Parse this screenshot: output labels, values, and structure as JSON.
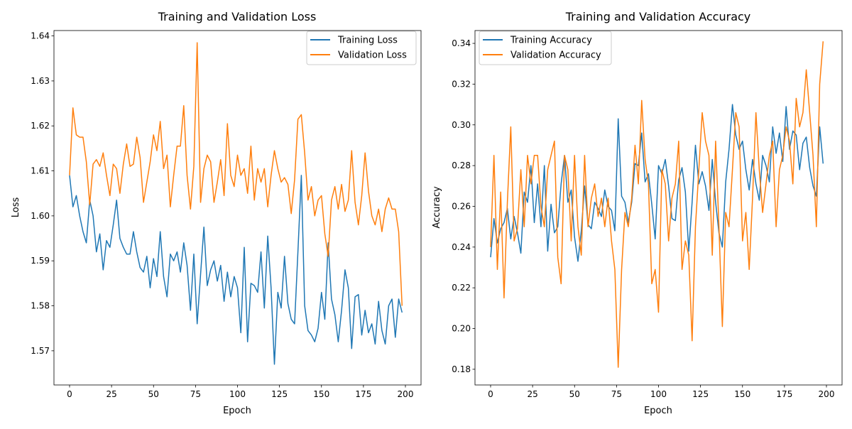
{
  "chart_data": [
    {
      "type": "line",
      "title": "Training and Validation Loss",
      "xlabel": "Epoch",
      "ylabel": "Loss",
      "xlim": [
        -9.3,
        209.3
      ],
      "ylim": [
        1.5624,
        1.6412
      ],
      "xticks": [
        0,
        25,
        50,
        75,
        100,
        125,
        150,
        175,
        200
      ],
      "xtick_labels": [
        "0",
        "25",
        "50",
        "75",
        "100",
        "125",
        "150",
        "175",
        "200"
      ],
      "yticks": [
        1.57,
        1.58,
        1.59,
        1.6,
        1.61,
        1.62,
        1.63,
        1.64
      ],
      "ytick_labels": [
        "1.57",
        "1.58",
        "1.59",
        "1.60",
        "1.61",
        "1.62",
        "1.63",
        "1.64"
      ],
      "grid": false,
      "legend_position": "top-right",
      "x": [
        0,
        2,
        4,
        6,
        8,
        10,
        12,
        14,
        16,
        18,
        20,
        22,
        24,
        26,
        28,
        30,
        32,
        34,
        36,
        38,
        40,
        42,
        44,
        46,
        48,
        50,
        52,
        54,
        56,
        58,
        60,
        62,
        64,
        66,
        68,
        70,
        72,
        74,
        76,
        78,
        80,
        82,
        84,
        86,
        88,
        90,
        92,
        94,
        96,
        98,
        100,
        102,
        104,
        106,
        108,
        110,
        112,
        114,
        116,
        118,
        120,
        122,
        124,
        126,
        128,
        130,
        132,
        134,
        136,
        138,
        140,
        142,
        144,
        146,
        148,
        150,
        152,
        154,
        156,
        158,
        160,
        162,
        164,
        166,
        168,
        170,
        172,
        174,
        176,
        178,
        180,
        182,
        184,
        186,
        188,
        190,
        192,
        194,
        196,
        198
      ],
      "series": [
        {
          "name": "Training Loss",
          "color": "#1f77b4",
          "values": [
            1.609,
            1.602,
            1.6045,
            1.6,
            1.5965,
            1.594,
            1.6035,
            1.6,
            1.592,
            1.596,
            1.588,
            1.5945,
            1.593,
            1.598,
            1.6035,
            1.595,
            1.593,
            1.5915,
            1.5915,
            1.5965,
            1.592,
            1.5885,
            1.5875,
            1.591,
            1.584,
            1.5905,
            1.5865,
            1.5965,
            1.5865,
            1.582,
            1.5915,
            1.59,
            1.592,
            1.5875,
            1.594,
            1.589,
            1.579,
            1.5915,
            1.576,
            1.587,
            1.5975,
            1.5845,
            1.588,
            1.59,
            1.5855,
            1.589,
            1.581,
            1.5875,
            1.582,
            1.5865,
            1.584,
            1.574,
            1.593,
            1.572,
            1.585,
            1.5845,
            1.583,
            1.592,
            1.5795,
            1.5955,
            1.584,
            1.567,
            1.583,
            1.5795,
            1.591,
            1.5805,
            1.577,
            1.576,
            1.592,
            1.609,
            1.58,
            1.5745,
            1.5735,
            1.572,
            1.575,
            1.583,
            1.577,
            1.594,
            1.5815,
            1.578,
            1.572,
            1.579,
            1.588,
            1.584,
            1.5705,
            1.582,
            1.5825,
            1.5735,
            1.579,
            1.574,
            1.576,
            1.5715,
            1.581,
            1.5745,
            1.5715,
            1.58,
            1.5815,
            1.573,
            1.5815,
            1.5785
          ]
        },
        {
          "name": "Validation Loss",
          "color": "#ff7f0e",
          "values": [
            1.609,
            1.624,
            1.618,
            1.6175,
            1.6175,
            1.612,
            1.6025,
            1.6115,
            1.6125,
            1.611,
            1.614,
            1.609,
            1.6045,
            1.6115,
            1.6105,
            1.605,
            1.6115,
            1.616,
            1.611,
            1.6115,
            1.6175,
            1.613,
            1.603,
            1.6075,
            1.612,
            1.618,
            1.6145,
            1.621,
            1.6105,
            1.6135,
            1.602,
            1.609,
            1.6155,
            1.6155,
            1.6245,
            1.609,
            1.6015,
            1.611,
            1.6385,
            1.603,
            1.6105,
            1.6135,
            1.612,
            1.603,
            1.6075,
            1.6125,
            1.6045,
            1.6205,
            1.609,
            1.6065,
            1.6135,
            1.609,
            1.6105,
            1.605,
            1.6155,
            1.6035,
            1.6105,
            1.6075,
            1.6105,
            1.602,
            1.609,
            1.6145,
            1.6105,
            1.6075,
            1.6085,
            1.607,
            1.6005,
            1.608,
            1.6215,
            1.6225,
            1.614,
            1.6035,
            1.6065,
            1.6,
            1.6035,
            1.6045,
            1.596,
            1.591,
            1.6035,
            1.6065,
            1.6015,
            1.607,
            1.601,
            1.6035,
            1.6145,
            1.603,
            1.598,
            1.6045,
            1.614,
            1.6055,
            1.6,
            1.598,
            1.6015,
            1.5965,
            1.6015,
            1.604,
            1.6015,
            1.6015,
            1.5965,
            1.58
          ]
        }
      ]
    },
    {
      "type": "line",
      "title": "Training and Validation Accuracy",
      "xlabel": "Epoch",
      "ylabel": "Accuracy",
      "xlim": [
        -9.3,
        209.3
      ],
      "ylim": [
        0.1723,
        0.3463
      ],
      "xticks": [
        0,
        25,
        50,
        75,
        100,
        125,
        150,
        175,
        200
      ],
      "xtick_labels": [
        "0",
        "25",
        "50",
        "75",
        "100",
        "125",
        "150",
        "175",
        "200"
      ],
      "yticks": [
        0.18,
        0.2,
        0.22,
        0.24,
        0.26,
        0.28,
        0.3,
        0.32,
        0.34
      ],
      "ytick_labels": [
        "0.18",
        "0.20",
        "0.22",
        "0.24",
        "0.26",
        "0.28",
        "0.30",
        "0.32",
        "0.34"
      ],
      "grid": false,
      "legend_position": "top-left",
      "x": [
        0,
        2,
        4,
        6,
        8,
        10,
        12,
        14,
        16,
        18,
        20,
        22,
        24,
        26,
        28,
        30,
        32,
        34,
        36,
        38,
        40,
        42,
        44,
        46,
        48,
        50,
        52,
        54,
        56,
        58,
        60,
        62,
        64,
        66,
        68,
        70,
        72,
        74,
        76,
        78,
        80,
        82,
        84,
        86,
        88,
        90,
        92,
        94,
        96,
        98,
        100,
        102,
        104,
        106,
        108,
        110,
        112,
        114,
        116,
        118,
        120,
        122,
        124,
        126,
        128,
        130,
        132,
        134,
        136,
        138,
        140,
        142,
        144,
        146,
        148,
        150,
        152,
        154,
        156,
        158,
        160,
        162,
        164,
        166,
        168,
        170,
        172,
        174,
        176,
        178,
        180,
        182,
        184,
        186,
        188,
        190,
        192,
        194,
        196,
        198
      ],
      "series": [
        {
          "name": "Training Accuracy",
          "color": "#1f77b4",
          "values": [
            0.235,
            0.254,
            0.242,
            0.249,
            0.252,
            0.259,
            0.244,
            0.255,
            0.247,
            0.237,
            0.267,
            0.262,
            0.28,
            0.252,
            0.271,
            0.25,
            0.28,
            0.238,
            0.261,
            0.247,
            0.25,
            0.271,
            0.285,
            0.262,
            0.268,
            0.245,
            0.233,
            0.248,
            0.27,
            0.251,
            0.249,
            0.262,
            0.259,
            0.255,
            0.268,
            0.26,
            0.258,
            0.248,
            0.303,
            0.265,
            0.262,
            0.252,
            0.262,
            0.281,
            0.28,
            0.296,
            0.272,
            0.276,
            0.261,
            0.244,
            0.28,
            0.276,
            0.283,
            0.27,
            0.254,
            0.253,
            0.273,
            0.279,
            0.267,
            0.238,
            0.262,
            0.29,
            0.271,
            0.277,
            0.27,
            0.258,
            0.283,
            0.262,
            0.247,
            0.24,
            0.272,
            0.288,
            0.31,
            0.295,
            0.288,
            0.292,
            0.278,
            0.268,
            0.283,
            0.271,
            0.263,
            0.285,
            0.28,
            0.272,
            0.299,
            0.286,
            0.296,
            0.282,
            0.309,
            0.288,
            0.297,
            0.295,
            0.278,
            0.291,
            0.294,
            0.279,
            0.27,
            0.265,
            0.299,
            0.281
          ]
        },
        {
          "name": "Validation Accuracy",
          "color": "#ff7f0e",
          "values": [
            0.24,
            0.285,
            0.229,
            0.267,
            0.215,
            0.262,
            0.299,
            0.243,
            0.249,
            0.278,
            0.25,
            0.285,
            0.271,
            0.285,
            0.285,
            0.26,
            0.25,
            0.278,
            0.285,
            0.292,
            0.235,
            0.222,
            0.285,
            0.278,
            0.243,
            0.285,
            0.25,
            0.236,
            0.285,
            0.25,
            0.264,
            0.271,
            0.255,
            0.264,
            0.25,
            0.264,
            0.243,
            0.229,
            0.181,
            0.229,
            0.257,
            0.25,
            0.264,
            0.29,
            0.271,
            0.312,
            0.283,
            0.271,
            0.222,
            0.229,
            0.208,
            0.278,
            0.271,
            0.243,
            0.264,
            0.271,
            0.292,
            0.229,
            0.243,
            0.236,
            0.194,
            0.25,
            0.278,
            0.306,
            0.292,
            0.285,
            0.236,
            0.292,
            0.25,
            0.201,
            0.257,
            0.25,
            0.278,
            0.306,
            0.299,
            0.243,
            0.257,
            0.229,
            0.264,
            0.306,
            0.278,
            0.257,
            0.271,
            0.285,
            0.292,
            0.25,
            0.278,
            0.285,
            0.299,
            0.292,
            0.271,
            0.313,
            0.299,
            0.306,
            0.327,
            0.306,
            0.285,
            0.25,
            0.32,
            0.341
          ]
        }
      ]
    }
  ]
}
